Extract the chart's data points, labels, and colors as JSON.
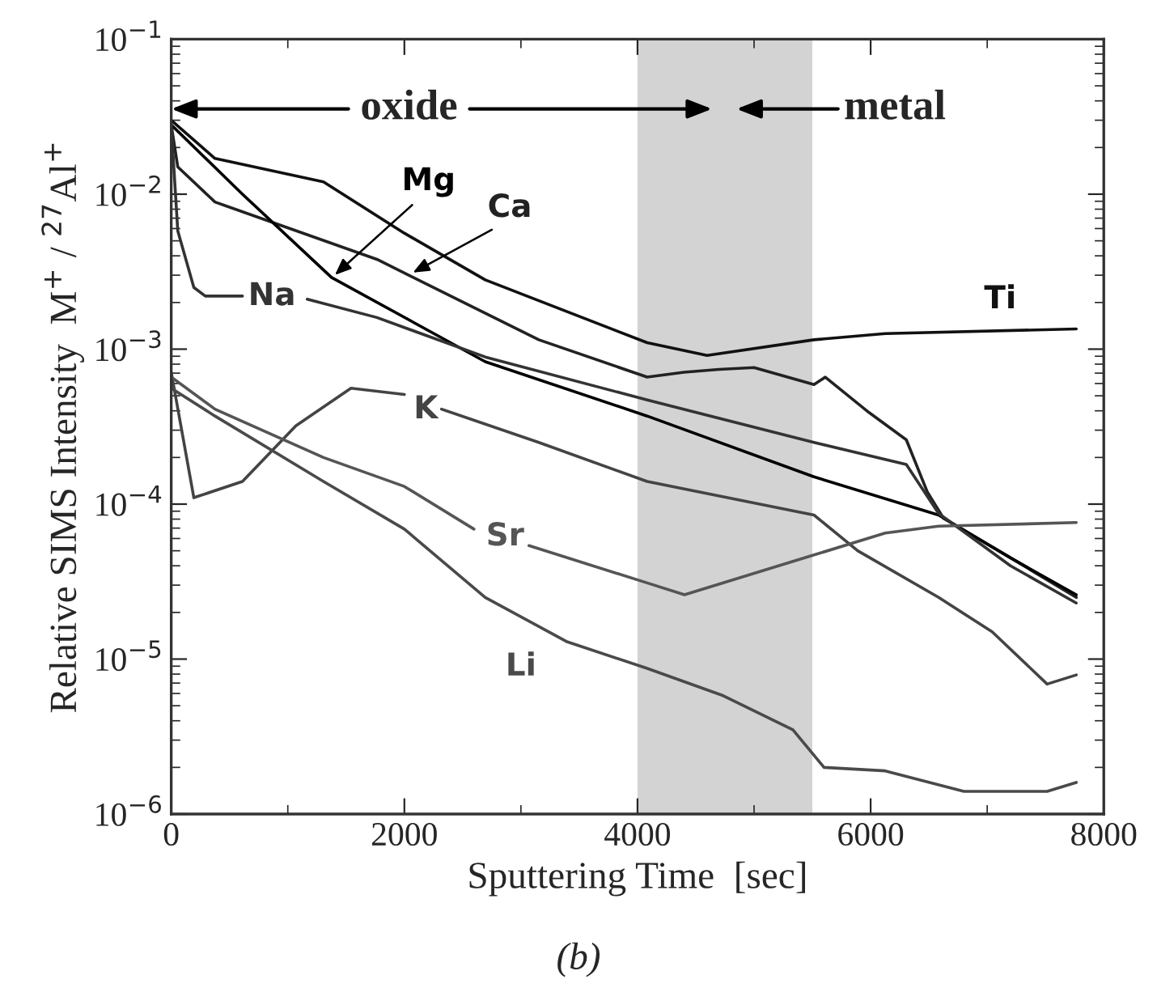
{
  "chart_data": {
    "type": "line",
    "xlabel": "Sputtering Time  [sec]",
    "ylabel": "Relative SIMS Intensity  M$^{+}$ / $^{27}$Al$^{+}$",
    "log": "y",
    "grid": false,
    "marker": "none",
    "line_style": "solid",
    "xlim": [
      0,
      8000
    ],
    "xticks": [
      0,
      2000,
      4000,
      6000,
      8000
    ],
    "ylim": [
      1e-06,
      0.1
    ],
    "yticks": [
      {
        "value": 1e-06,
        "label": "10$^{−6}$"
      },
      {
        "value": 1e-05,
        "label": "10$^{−5}$"
      },
      {
        "value": 0.0001,
        "label": "10$^{−4}$"
      },
      {
        "value": 0.001,
        "label": "10$^{−3}$"
      },
      {
        "value": 0.01,
        "label": "10$^{−2}$"
      },
      {
        "value": 0.1,
        "label": "10$^{−1}$"
      }
    ],
    "bands": [
      {
        "axis": "x",
        "from": 4000,
        "to": 5500,
        "color": "#d3d3d3"
      }
    ],
    "series": [
      {
        "name": "Ti",
        "color": "#111111",
        "x": [
          0,
          375,
          1306,
          2000,
          2694,
          4083,
          4597,
          5514,
          6125,
          7764
        ],
        "values": [
          0.03,
          0.017,
          0.012,
          0.0056,
          0.0028,
          0.0011,
          0.00091,
          0.00115,
          0.00126,
          0.00135
        ]
      },
      {
        "name": "Ca",
        "color": "#222222",
        "x": [
          0,
          56,
          375,
          1764,
          3153,
          4083,
          4400,
          4700,
          5000,
          5514,
          5611,
          5986,
          6306,
          6486,
          6625,
          7200,
          7764
        ],
        "values": [
          0.028,
          0.015,
          0.0089,
          0.0038,
          0.00115,
          0.00066,
          0.00071,
          0.00074,
          0.00076,
          0.00059,
          0.00066,
          0.00039,
          0.00026,
          0.00012,
          8.1e-05,
          4.5e-05,
          2.5e-05
        ]
      },
      {
        "name": "Mg",
        "color": "#000000",
        "x": [
          0,
          611,
          1375,
          2694,
          4083,
          5514,
          6583,
          7200,
          7764
        ],
        "values": [
          0.028,
          0.01,
          0.0029,
          0.00083,
          0.00037,
          0.00015,
          8.5e-05,
          4.5e-05,
          2.6e-05
        ]
      },
      {
        "name": "Na",
        "color": "#333333",
        "x": [
          0,
          56,
          194,
          292,
          611,
          900,
          1167,
          1764,
          2694,
          4083,
          5514,
          6306,
          6583,
          7200,
          7764
        ],
        "values": [
          0.028,
          0.0058,
          0.0025,
          0.0022,
          0.0022,
          null,
          0.0021,
          0.0016,
          0.00089,
          0.00047,
          0.00025,
          0.00018,
          8.7e-05,
          4e-05,
          2.3e-05
        ]
      },
      {
        "name": "K",
        "color": "#444444",
        "x": [
          0,
          194,
          611,
          1069,
          1542,
          2000,
          2160,
          2319,
          3153,
          4083,
          5514,
          5889,
          6583,
          7042,
          7514,
          7764
        ],
        "values": [
          0.00071,
          0.00011,
          0.00014,
          0.00032,
          0.00056,
          0.00051,
          null,
          0.00041,
          0.00025,
          0.00014,
          8.5e-05,
          5e-05,
          2.5e-05,
          1.5e-05,
          6.9e-06,
          7.9e-06
        ]
      },
      {
        "name": "Sr",
        "color": "#555555",
        "x": [
          0,
          375,
          1306,
          2000,
          2597,
          2830,
          3069,
          4083,
          4403,
          5514,
          6125,
          6583,
          7764
        ],
        "values": [
          0.00066,
          0.00041,
          0.0002,
          0.00013,
          6.9e-05,
          null,
          5.4e-05,
          3.1e-05,
          2.6e-05,
          4.7e-05,
          6.5e-05,
          7.2e-05,
          7.6e-05
        ]
      },
      {
        "name": "Li",
        "color": "#4a4a4a",
        "x": [
          0,
          375,
          1306,
          2000,
          2694,
          3389,
          4083,
          4736,
          5333,
          5600,
          6125,
          6800,
          7514,
          7764
        ],
        "values": [
          0.00056,
          0.00037,
          0.00014,
          6.9e-05,
          2.5e-05,
          1.3e-05,
          8.7e-06,
          5.8e-06,
          3.5e-06,
          2e-06,
          1.9e-06,
          1.4e-06,
          1.4e-06,
          1.6e-06
        ]
      }
    ],
    "annotations": [
      "oxide",
      "metal",
      "(b)"
    ]
  }
}
